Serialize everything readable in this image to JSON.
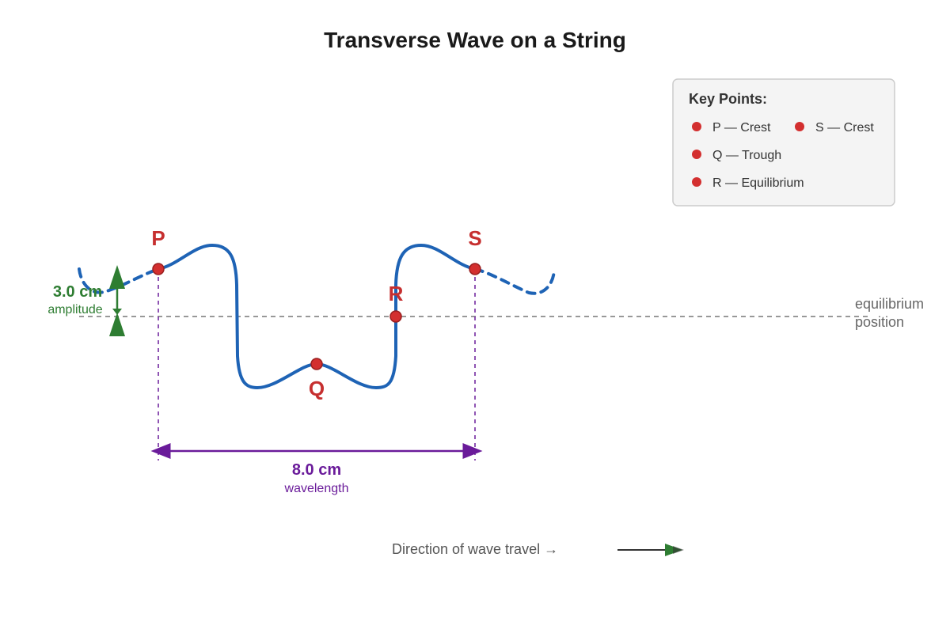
{
  "title": "Transverse Wave on a String",
  "legend": {
    "heading": "Key Points:",
    "items": [
      {
        "id": "P",
        "text": "P — Crest"
      },
      {
        "id": "S",
        "text": "S — Crest"
      },
      {
        "id": "Q",
        "text": "Q — Trough"
      },
      {
        "id": "R",
        "text": "R — Equilibrium"
      }
    ]
  },
  "points": {
    "P": "P",
    "Q": "Q",
    "R": "R",
    "S": "S"
  },
  "amplitude": {
    "value": "3.0 cm",
    "label": "amplitude"
  },
  "wavelength": {
    "value": "8.0 cm",
    "label": "wavelength"
  },
  "equilibrium": {
    "line1": "equilibrium",
    "line2": "position"
  },
  "direction": {
    "label": "Direction of wave travel →"
  },
  "colors": {
    "wave": "#1e63b5",
    "point": "#d32f2f",
    "amplitude": "#2e7d32",
    "wavelength": "#6a1b9a",
    "equilibrium_line": "#777777"
  }
}
